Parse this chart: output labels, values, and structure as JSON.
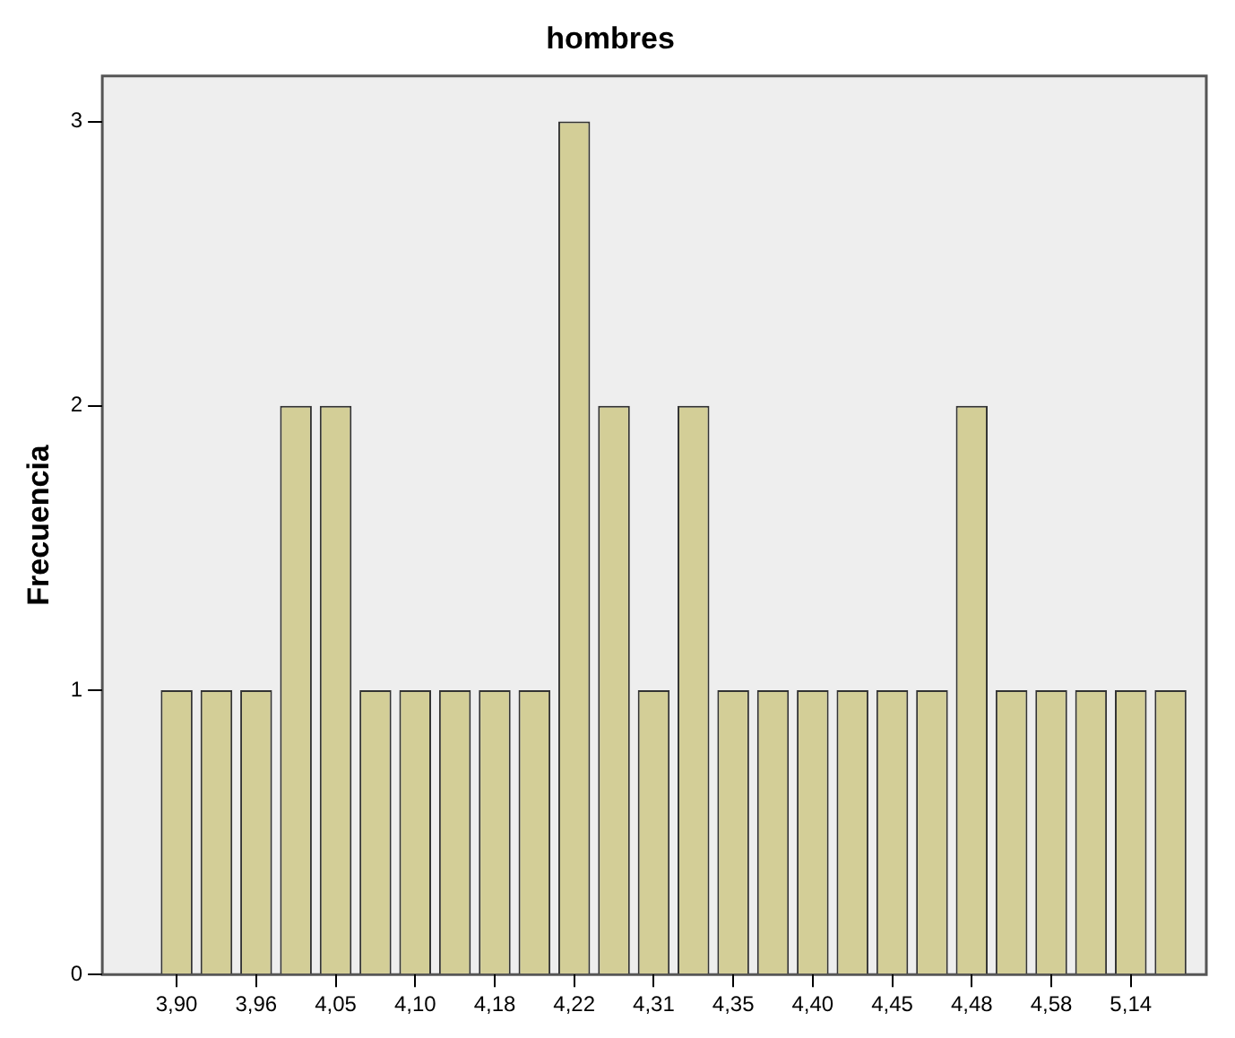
{
  "chart_data": {
    "type": "bar",
    "title": "hombres",
    "ylabel": "Frecuencia",
    "categories": [
      "3,90",
      null,
      "3,96",
      null,
      "4,05",
      null,
      "4,10",
      null,
      "4,18",
      null,
      "4,22",
      null,
      "4,31",
      null,
      "4,35",
      null,
      "4,40",
      null,
      "4,45",
      null,
      "4,48",
      null,
      "4,58",
      null,
      "5,14",
      null
    ],
    "values": [
      1,
      1,
      1,
      2,
      2,
      1,
      1,
      1,
      1,
      1,
      3,
      2,
      1,
      2,
      1,
      1,
      1,
      1,
      1,
      1,
      2,
      1,
      1,
      1,
      1,
      1
    ],
    "color": "#d3ce97",
    "ylim": [
      0,
      3.16
    ],
    "yticks": [
      0,
      1,
      2,
      3
    ],
    "grid": false,
    "legend": false
  }
}
